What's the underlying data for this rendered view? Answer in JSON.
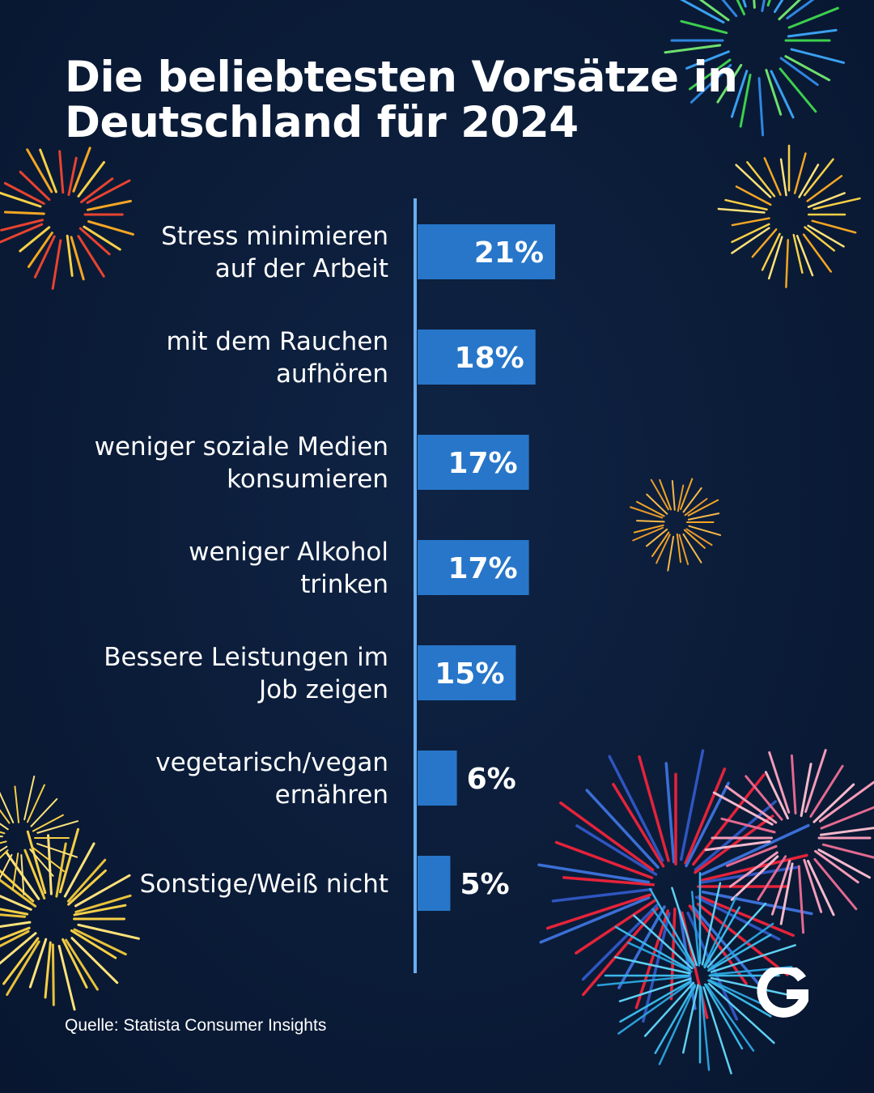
{
  "title_lines": [
    "Die beliebtesten Vorsätze in",
    "Deutschland für 2024"
  ],
  "source": "Quelle: Statista Consumer Insights",
  "colors": {
    "background": "#0b1c38",
    "bar": "#2776c9",
    "axis": "#6aaef0",
    "text": "#ffffff"
  },
  "chart_data": {
    "type": "bar",
    "orientation": "horizontal",
    "categories": [
      [
        "Stress minimieren",
        "auf der Arbeit"
      ],
      [
        "mit dem Rauchen",
        "aufhören"
      ],
      [
        "weniger soziale Medien",
        "konsumieren"
      ],
      [
        "weniger Alkohol",
        "trinken"
      ],
      [
        "Bessere Leistungen im",
        "Job zeigen"
      ],
      [
        "vegetarisch/vegan",
        "ernähren"
      ],
      [
        "Sonstige/Weiß nicht"
      ]
    ],
    "values": [
      21,
      18,
      17,
      17,
      15,
      6,
      5
    ],
    "value_labels": [
      "21%",
      "18%",
      "17%",
      "17%",
      "15%",
      "6%",
      "5%"
    ],
    "unit": "%",
    "xlim": [
      0,
      21
    ],
    "grid": false,
    "legend": "none"
  }
}
